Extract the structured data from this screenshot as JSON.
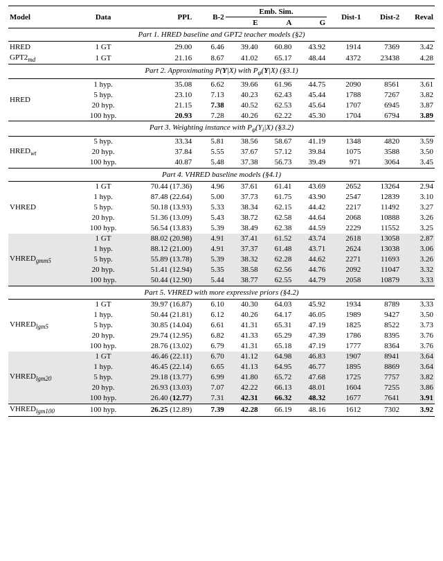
{
  "headers": {
    "model": "Model",
    "data": "Data",
    "ppl": "PPL",
    "b2": "B-2",
    "emb": "Emb. Sim.",
    "e": "E",
    "a": "A",
    "g": "G",
    "d1": "Dist-1",
    "d2": "Dist-2",
    "reval": "Reval"
  },
  "parts": {
    "p1": "Part 1. HRED baseline and GPT2 teacher models (§2)",
    "p2": "Part 2. Approximating P(Y|X) with P_φ(Y|X) (§3.1)",
    "p3": "Part 3. Weighting instance with P_φ(Y_i|X) (§3.2)",
    "p4": "Part 4. VHRED baseline models (§4.1)",
    "p5": "Part 5. VHRED with more expressive priors (§4.2)"
  },
  "models": {
    "hred": "HRED",
    "gpt2md": "GPT2",
    "gpt2md_sub": "md",
    "hred_wt": "HRED",
    "hred_wt_sub": "wt",
    "vhred": "VHRED",
    "vhred_gmm5": "VHRED",
    "vhred_gmm5_sub": "gmm5",
    "vhred_lgm5": "VHRED",
    "vhred_lgm5_sub": "lgm5",
    "vhred_lgm20": "VHRED",
    "vhred_lgm20_sub": "lgm20",
    "vhred_lgm100": "VHRED",
    "vhred_lgm100_sub": "lgm100"
  },
  "data_labels": {
    "gt1": "1 GT",
    "h1": "1 hyp.",
    "h5": "5 hyp.",
    "h20": "20 hyp.",
    "h100": "100 hyp."
  },
  "rows": {
    "p1r1": {
      "ppl": "29.00",
      "b2": "6.46",
      "e": "39.40",
      "a": "60.80",
      "g": "43.92",
      "d1": "1914",
      "d2": "7369",
      "reval": "3.42"
    },
    "p1r2": {
      "ppl": "21.16",
      "b2": "8.67",
      "e": "41.02",
      "a": "65.17",
      "g": "48.44",
      "d1": "4372",
      "d2": "23438",
      "reval": "4.28"
    },
    "p2r1": {
      "ppl": "35.08",
      "b2": "6.62",
      "e": "39.66",
      "a": "61.96",
      "g": "44.75",
      "d1": "2090",
      "d2": "8561",
      "reval": "3.61"
    },
    "p2r2": {
      "ppl": "23.10",
      "b2": "7.13",
      "e": "40.23",
      "a": "62.43",
      "g": "45.44",
      "d1": "1788",
      "d2": "7267",
      "reval": "3.82"
    },
    "p2r3": {
      "ppl": "21.15",
      "b2": "7.38",
      "e": "40.52",
      "a": "62.53",
      "g": "45.64",
      "d1": "1707",
      "d2": "6945",
      "reval": "3.87"
    },
    "p2r4": {
      "ppl": "20.93",
      "b2": "7.28",
      "e": "40.26",
      "a": "62.22",
      "g": "45.30",
      "d1": "1704",
      "d2": "6794",
      "reval": "3.89"
    },
    "p3r1": {
      "ppl": "33.34",
      "b2": "5.81",
      "e": "38.56",
      "a": "58.67",
      "g": "41.19",
      "d1": "1348",
      "d2": "4820",
      "reval": "3.59"
    },
    "p3r2": {
      "ppl": "37.84",
      "b2": "5.55",
      "e": "37.67",
      "a": "57.12",
      "g": "39.84",
      "d1": "1075",
      "d2": "3588",
      "reval": "3.50"
    },
    "p3r3": {
      "ppl": "40.87",
      "b2": "5.48",
      "e": "37.38",
      "a": "56.73",
      "g": "39.49",
      "d1": "971",
      "d2": "3064",
      "reval": "3.45"
    },
    "p4r1": {
      "ppl": "70.44 (17.36)",
      "b2": "4.96",
      "e": "37.61",
      "a": "61.41",
      "g": "43.69",
      "d1": "2652",
      "d2": "13264",
      "reval": "2.94"
    },
    "p4r2": {
      "ppl": "87.48 (22.64)",
      "b2": "5.00",
      "e": "37.73",
      "a": "61.75",
      "g": "43.90",
      "d1": "2547",
      "d2": "12839",
      "reval": "3.10"
    },
    "p4r3": {
      "ppl": "50.18 (13.93)",
      "b2": "5.33",
      "e": "38.34",
      "a": "62.15",
      "g": "44.42",
      "d1": "2217",
      "d2": "11492",
      "reval": "3.27"
    },
    "p4r4": {
      "ppl": "51.36 (13.09)",
      "b2": "5.43",
      "e": "38.72",
      "a": "62.58",
      "g": "44.64",
      "d1": "2068",
      "d2": "10888",
      "reval": "3.26"
    },
    "p4r5": {
      "ppl": "56.54 (13.83)",
      "b2": "5.39",
      "e": "38.49",
      "a": "62.38",
      "g": "44.59",
      "d1": "2229",
      "d2": "11552",
      "reval": "3.25"
    },
    "p4r6": {
      "ppl": "88.02 (20.98)",
      "b2": "4.91",
      "e": "37.41",
      "a": "61.52",
      "g": "43.74",
      "d1": "2618",
      "d2": "13058",
      "reval": "2.87"
    },
    "p4r7": {
      "ppl": "88.12 (21.00)",
      "b2": "4.91",
      "e": "37.37",
      "a": "61.48",
      "g": "43.71",
      "d1": "2624",
      "d2": "13038",
      "reval": "3.06"
    },
    "p4r8": {
      "ppl": "55.89 (13.78)",
      "b2": "5.39",
      "e": "38.32",
      "a": "62.28",
      "g": "44.62",
      "d1": "2271",
      "d2": "11693",
      "reval": "3.26"
    },
    "p4r9": {
      "ppl": "51.41 (12.94)",
      "b2": "5.35",
      "e": "38.58",
      "a": "62.56",
      "g": "44.76",
      "d1": "2092",
      "d2": "11047",
      "reval": "3.32"
    },
    "p4r10": {
      "ppl": "50.44 (12.90)",
      "b2": "5.44",
      "e": "38.77",
      "a": "62.55",
      "g": "44.79",
      "d1": "2058",
      "d2": "10879",
      "reval": "3.33"
    },
    "p5r1": {
      "ppl": "39.97 (16.87)",
      "b2": "6.10",
      "e": "40.30",
      "a": "64.03",
      "g": "45.92",
      "d1": "1934",
      "d2": "8789",
      "reval": "3.33"
    },
    "p5r2": {
      "ppl": "50.44 (21.81)",
      "b2": "6.12",
      "e": "40.26",
      "a": "64.17",
      "g": "46.05",
      "d1": "1989",
      "d2": "9427",
      "reval": "3.50"
    },
    "p5r3": {
      "ppl": "30.85 (14.04)",
      "b2": "6.61",
      "e": "41.31",
      "a": "65.31",
      "g": "47.19",
      "d1": "1825",
      "d2": "8522",
      "reval": "3.73"
    },
    "p5r4": {
      "ppl": "29.74 (12.95)",
      "b2": "6.82",
      "e": "41.33",
      "a": "65.29",
      "g": "47.39",
      "d1": "1786",
      "d2": "8395",
      "reval": "3.76"
    },
    "p5r5": {
      "ppl": "28.76 (13.02)",
      "b2": "6.79",
      "e": "41.31",
      "a": "65.18",
      "g": "47.19",
      "d1": "1777",
      "d2": "8364",
      "reval": "3.76"
    },
    "p5r6": {
      "ppl": "46.46 (22.11)",
      "b2": "6.70",
      "e": "41.12",
      "a": "64.98",
      "g": "46.83",
      "d1": "1907",
      "d2": "8941",
      "reval": "3.64"
    },
    "p5r7": {
      "ppl": "46.45 (22.14)",
      "b2": "6.65",
      "e": "41.13",
      "a": "64.95",
      "g": "46.77",
      "d1": "1895",
      "d2": "8869",
      "reval": "3.64"
    },
    "p5r8": {
      "ppl": "29.18 (13.77)",
      "b2": "6.99",
      "e": "41.80",
      "a": "65.72",
      "g": "47.68",
      "d1": "1725",
      "d2": "7757",
      "reval": "3.82"
    },
    "p5r9": {
      "ppl": "26.93 (13.03)",
      "b2": "7.07",
      "e": "42.22",
      "a": "66.13",
      "g": "48.01",
      "d1": "1604",
      "d2": "7255",
      "reval": "3.86"
    },
    "p5r10": {
      "ppl": "26.40 (12.77)",
      "b2": "7.31",
      "e": "42.31",
      "a": "66.32",
      "g": "48.32",
      "d1": "1677",
      "d2": "7641",
      "reval": "3.91"
    },
    "p5r11": {
      "ppl": "26.25 (12.89)",
      "b2": "7.39",
      "e": "42.28",
      "a": "66.19",
      "g": "48.16",
      "d1": "1612",
      "d2": "7302",
      "reval": "3.92"
    }
  }
}
